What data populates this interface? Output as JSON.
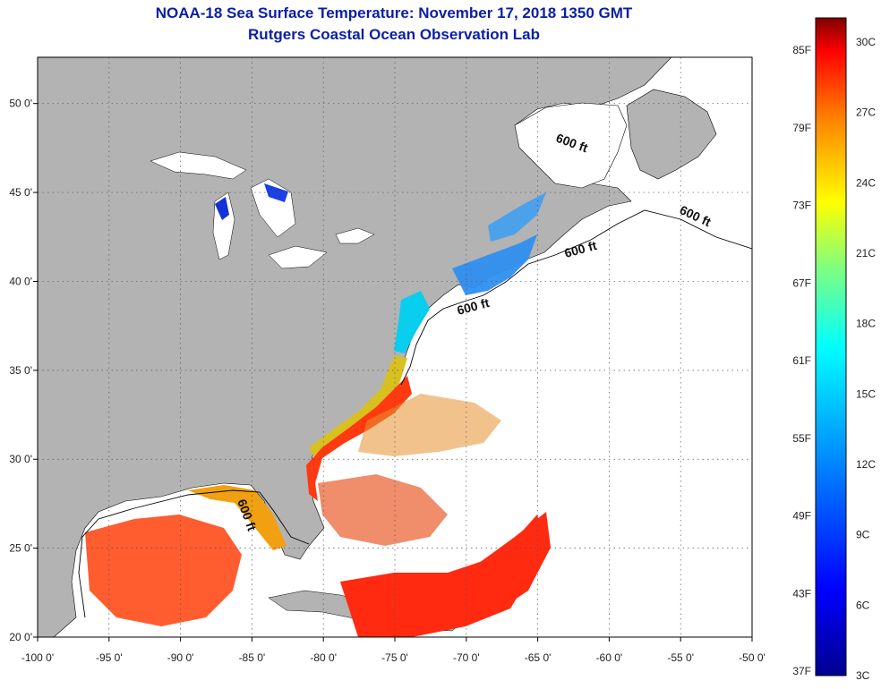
{
  "title": "NOAA-18 Sea Surface Temperature:  November 17, 2018 1350 GMT",
  "subtitle": "Rutgers Coastal Ocean Observation Lab",
  "lon_ticks": [
    "-100 0'",
    "-95 0'",
    "-90 0'",
    "-85 0'",
    "-80 0'",
    "-75 0'",
    "-70 0'",
    "-65 0'",
    "-60 0'",
    "-55 0'",
    "-50 0'"
  ],
  "lat_ticks": [
    "50 0'",
    "45 0'",
    "40 0'",
    "35 0'",
    "30 0'",
    "25 0'",
    "20 0'"
  ],
  "depth_label": "600 ft",
  "colorbar": {
    "fahrenheit": [
      "85F",
      "79F",
      "73F",
      "67F",
      "61F",
      "55F",
      "49F",
      "43F",
      "37F"
    ],
    "celsius": [
      "30C",
      "27C",
      "24C",
      "21C",
      "18C",
      "15C",
      "12C",
      "9C",
      "6C",
      "3C"
    ],
    "colors": [
      "#7f0000",
      "#ff0000",
      "#ff7f00",
      "#ffff00",
      "#7fff7f",
      "#00ffff",
      "#007fff",
      "#0000ff",
      "#00008f"
    ]
  },
  "colors": {
    "land": "#b3b3b3",
    "title": "#0a1fa6"
  }
}
